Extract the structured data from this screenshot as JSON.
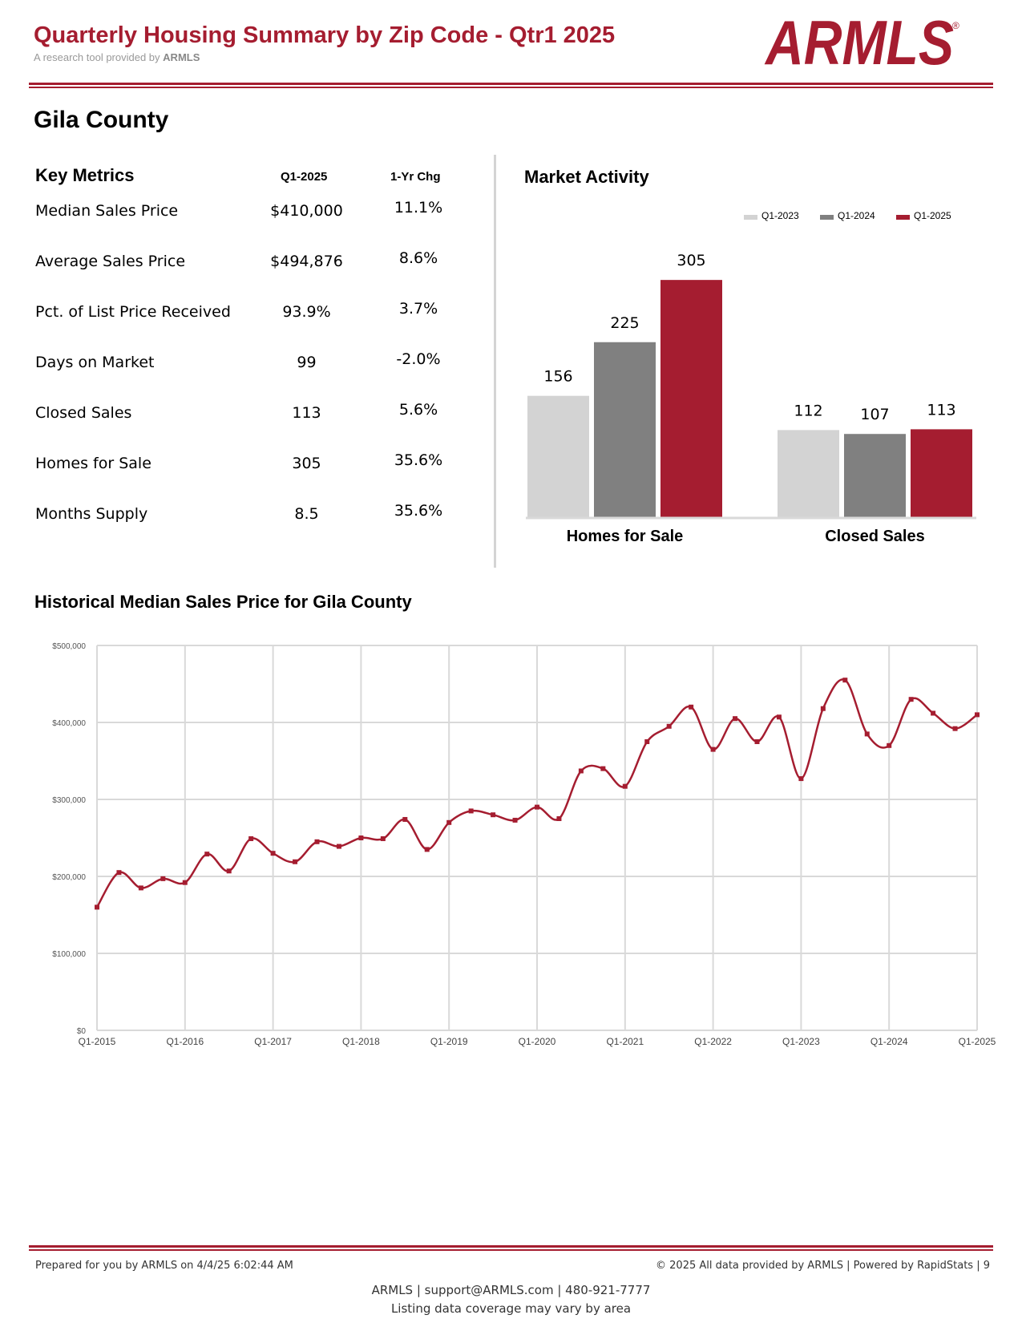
{
  "header": {
    "title": "Quarterly Housing Summary by Zip Code - Qtr1 2025",
    "subtitle_prefix": "A research tool provided by",
    "subtitle_brand": "ARMLS",
    "logo_text": "ARMLS",
    "logo_mark": "®"
  },
  "county": "Gila County",
  "key_metrics": {
    "title": "Key Metrics",
    "col_current": "Q1-2025",
    "col_change": "1-Yr Chg",
    "rows": [
      {
        "label": "Median Sales Price",
        "value": "$410,000",
        "change": "11.1%"
      },
      {
        "label": "Average Sales Price",
        "value": "$494,876",
        "change": "8.6%"
      },
      {
        "label": "Pct. of List Price Received",
        "value": "93.9%",
        "change": "3.7%"
      },
      {
        "label": "Days on Market",
        "value": "99",
        "change": "-2.0%"
      },
      {
        "label": "Closed Sales",
        "value": "113",
        "change": "5.6%"
      },
      {
        "label": "Homes for Sale",
        "value": "305",
        "change": "35.6%"
      },
      {
        "label": "Months Supply",
        "value": "8.5",
        "change": "35.6%"
      }
    ]
  },
  "colors": {
    "brand_red": "#a51d30",
    "q1_2023": "#d3d3d3",
    "q1_2024": "#808080",
    "q1_2025": "#a51d30",
    "grid": "#d9d9d9"
  },
  "chart_data": [
    {
      "type": "bar",
      "title": "Market Activity",
      "categories": [
        "Homes for Sale",
        "Closed Sales"
      ],
      "series": [
        {
          "name": "Q1-2023",
          "values": [
            156,
            112
          ]
        },
        {
          "name": "Q1-2024",
          "values": [
            225,
            107
          ]
        },
        {
          "name": "Q1-2025",
          "values": [
            305,
            113
          ]
        }
      ],
      "legend": "top-right",
      "data_labels": true
    },
    {
      "type": "line",
      "title": "Historical Median Sales Price for Gila County",
      "x_tick_labels": [
        "Q1-2015",
        "Q1-2016",
        "Q1-2017",
        "Q1-2018",
        "Q1-2019",
        "Q1-2020",
        "Q1-2021",
        "Q1-2022",
        "Q1-2023",
        "Q1-2024",
        "Q1-2025"
      ],
      "y_tick_labels": [
        "$0",
        "$100,000",
        "$200,000",
        "$300,000",
        "$400,000",
        "$500,000"
      ],
      "ylim": [
        0,
        500000
      ],
      "y_ticks": [
        0,
        100000,
        200000,
        300000,
        400000,
        500000
      ],
      "grid": true,
      "series": [
        {
          "values": [
            160000,
            205000,
            185000,
            197000,
            192000,
            229000,
            207000,
            249000,
            230000,
            219000,
            245000,
            239000,
            250000,
            249000,
            274000,
            235000,
            270000,
            285000,
            280000,
            273000,
            290000,
            275000,
            337000,
            340000,
            317000,
            375000,
            395000,
            420000,
            365000,
            405000,
            375000,
            407000,
            327000,
            418000,
            455000,
            385000,
            370000,
            430000,
            412000,
            392000,
            410000
          ]
        }
      ]
    }
  ],
  "footer": {
    "prepared": "Prepared for you by ARMLS on 4/4/25 6:02:44 AM",
    "copyright": "© 2025 All data provided by ARMLS | Powered by RapidStats  | 9",
    "contact": "ARMLS | support@ARMLS.com | 480-921-7777",
    "coverage": "Listing data coverage may vary by area"
  }
}
